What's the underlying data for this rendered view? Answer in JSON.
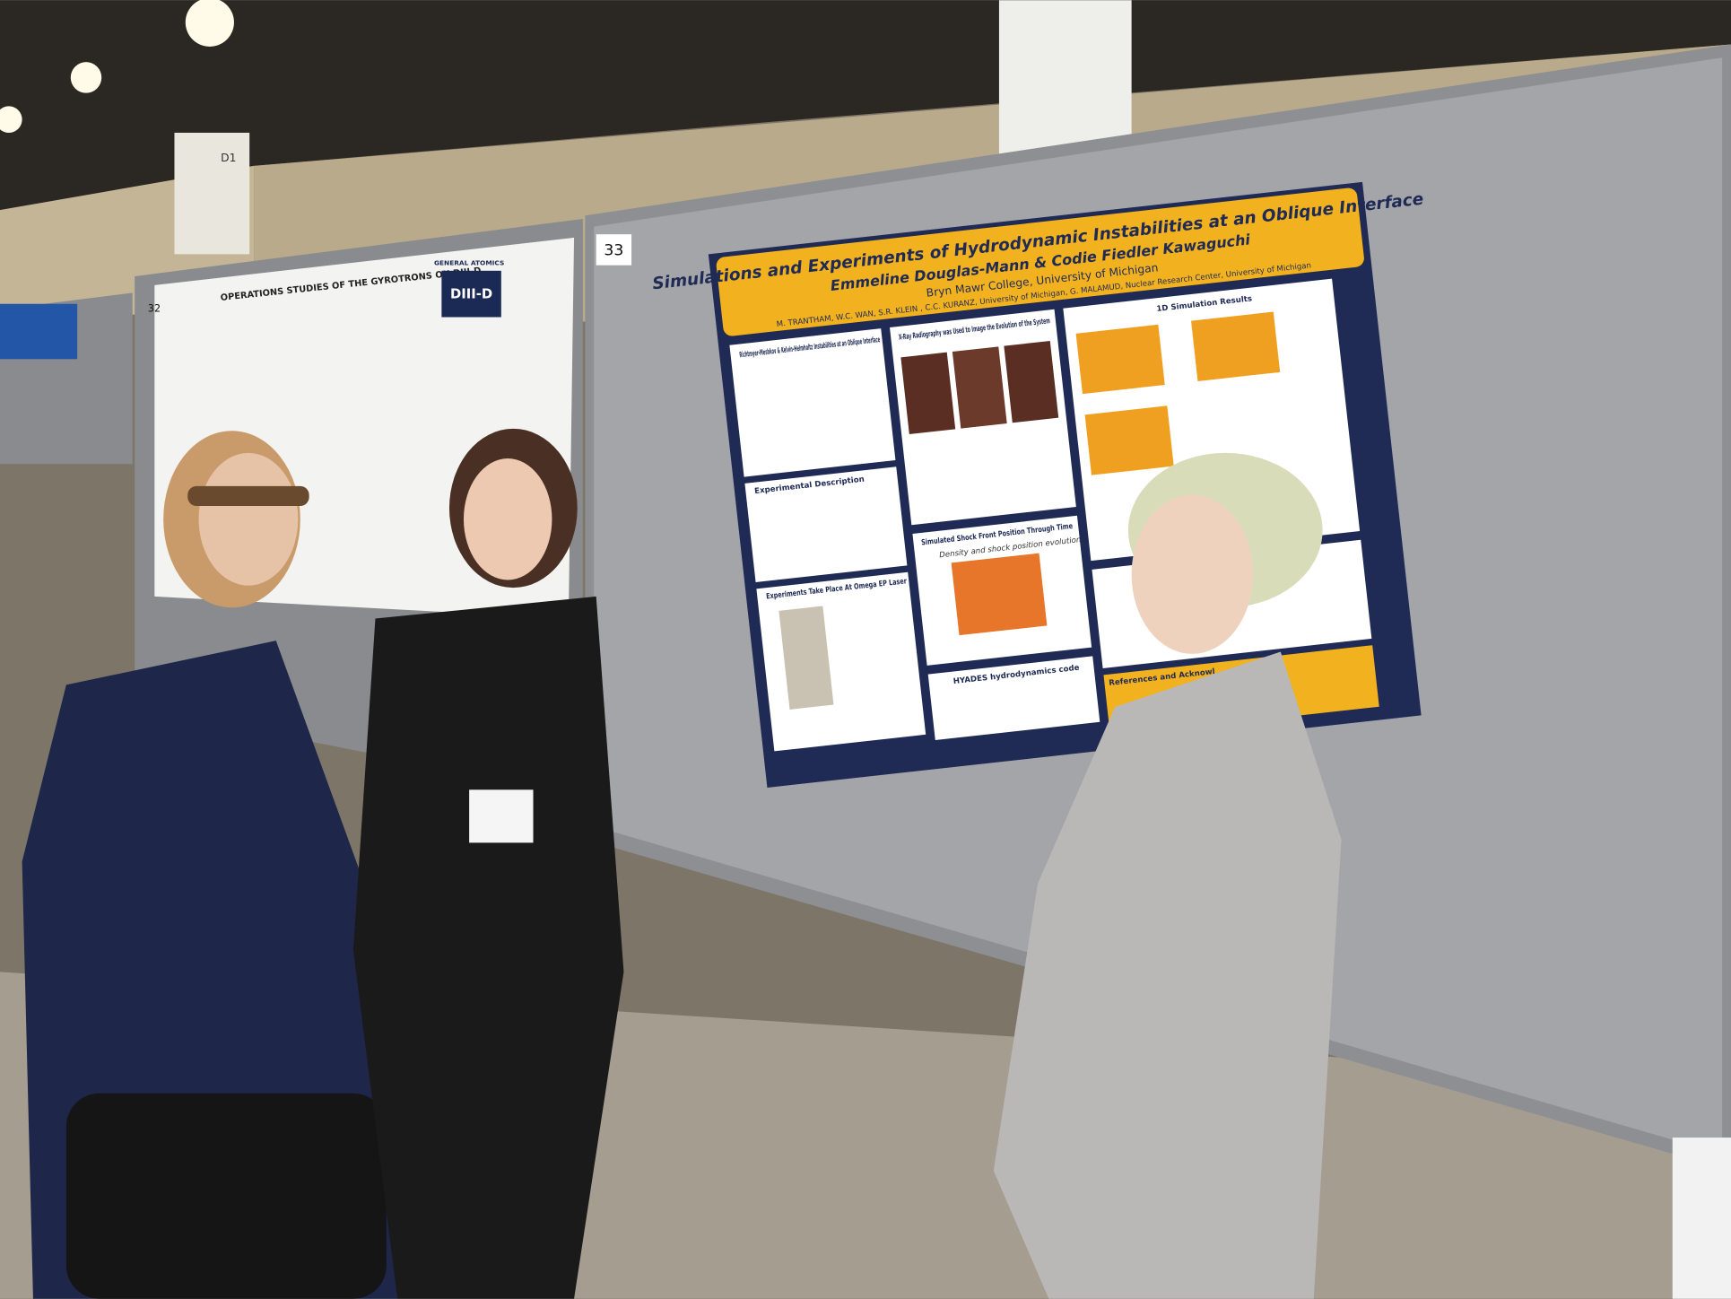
{
  "booth": {
    "number": "33",
    "neighbor_number": "32",
    "pillar_label": "D1"
  },
  "left_poster": {
    "title": "OPERATIONS STUDIES OF THE GYROTRONS ON DIII-D",
    "logo": "DIII-D",
    "org": "GENERAL ATOMICS"
  },
  "poster": {
    "title": "Simulations and Experiments of Hydrodynamic Instabilities at an Oblique Interface",
    "authors": "Emmeline Douglas-Mann & Codie Fiedler Kawaguchi",
    "affiliation": "Bryn Mawr College, University of Michigan",
    "coauthors": "M. TRANTHAM, W.C. WAN, S.R. KLEIN , C.C. KURANZ, University of Michigan, G. MALAMUD, Nuclear Research Center, University of Michigan",
    "sections": [
      {
        "heading": "Richtmyer-Meshkov & Kelvin-Helmholtz Instabilities at an Oblique Interface"
      },
      {
        "heading": "X-Ray Radiography was Used to Image the Evolution of the System"
      },
      {
        "heading": "1D Simulation Results"
      },
      {
        "heading": "Experimental Description"
      },
      {
        "heading": "Simulated Shock Front Position Through Time",
        "plot_title": "Density and shock position evolution"
      },
      {
        "heading": "Experiments Take Place At Omega EP Laser"
      },
      {
        "heading": "HYADES hydrodynamics code"
      },
      {
        "heading": "References and Acknowl"
      }
    ]
  }
}
